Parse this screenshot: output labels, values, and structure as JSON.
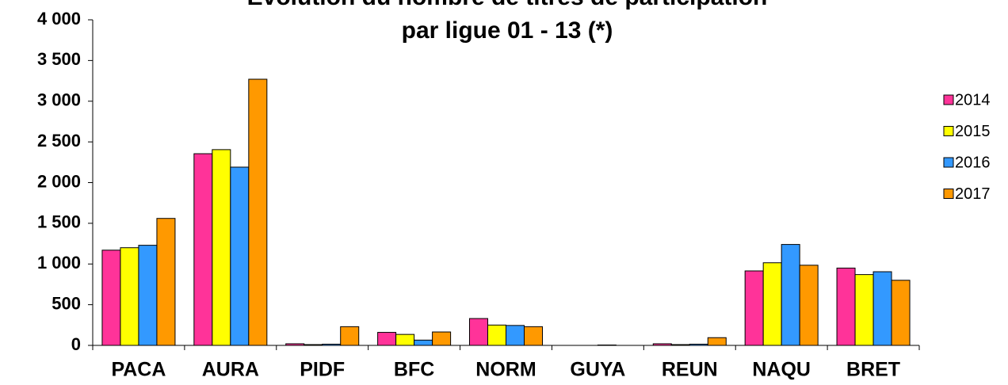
{
  "chart_data": {
    "type": "bar",
    "title": [
      "Evolution du nombre de titres de participation",
      "par ligue 01 - 13 (*)"
    ],
    "categories": [
      "PACA",
      "AURA",
      "PIDF",
      "BFC",
      "NORM",
      "GUYA",
      "REUN",
      "NAQU",
      "BRET"
    ],
    "series": [
      {
        "name": "2014",
        "color": "#ff3399",
        "values": [
          1170,
          2355,
          20,
          160,
          330,
          0,
          20,
          915,
          950
        ]
      },
      {
        "name": "2015",
        "color": "#ffff00",
        "values": [
          1200,
          2405,
          10,
          135,
          250,
          0,
          10,
          1015,
          870
        ]
      },
      {
        "name": "2016",
        "color": "#3399ff",
        "values": [
          1230,
          2190,
          15,
          65,
          245,
          5,
          15,
          1240,
          905
        ]
      },
      {
        "name": "2017",
        "color": "#ff9900",
        "values": [
          1560,
          3270,
          230,
          165,
          230,
          0,
          95,
          985,
          800
        ]
      }
    ],
    "ylim": [
      0,
      4000
    ],
    "yticks": [
      0,
      500,
      {
        "value": 1000,
        "label": "1 000"
      },
      {
        "value": 1500,
        "label": "1 500"
      },
      {
        "value": 2000,
        "label": "2 000"
      },
      {
        "value": 2500,
        "label": "2 500"
      },
      {
        "value": 3000,
        "label": "3 000"
      },
      {
        "value": 3500,
        "label": "3 500"
      },
      {
        "value": 4000,
        "label": "4 000"
      }
    ],
    "grid": false,
    "legend": "right"
  }
}
